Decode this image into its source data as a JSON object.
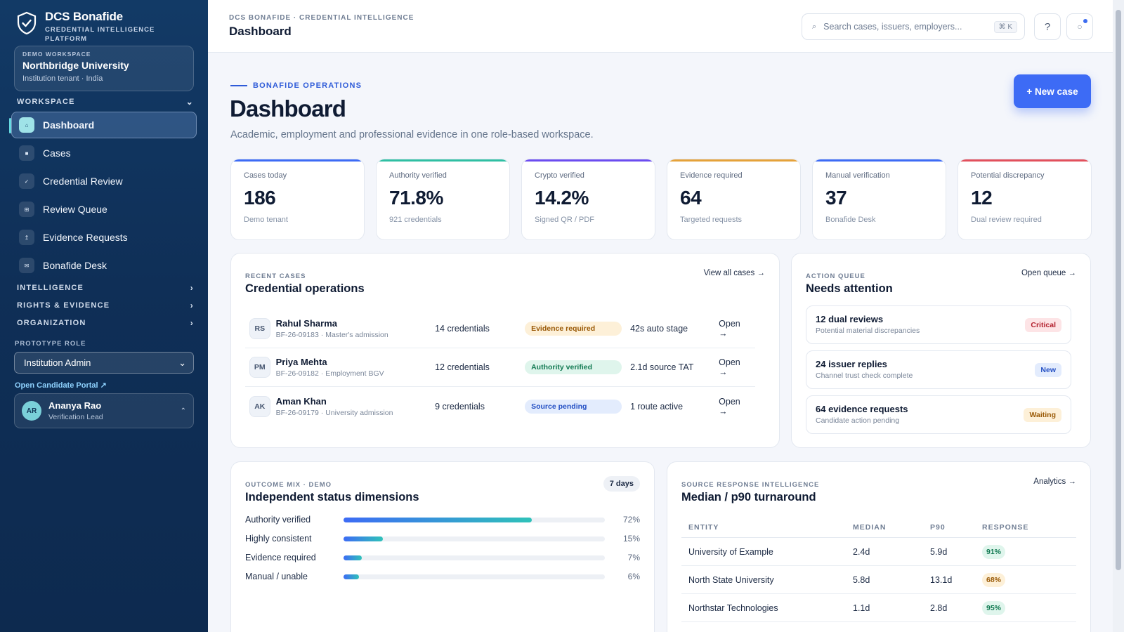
{
  "brand": {
    "name": "DCS Bonafide",
    "subtitle_line1": "CREDENTIAL INTELLIGENCE",
    "subtitle_line2": "PLATFORM"
  },
  "workspace_card": {
    "tag": "DEMO WORKSPACE",
    "name": "Northbridge University",
    "meta": "Institution tenant · India"
  },
  "sidebar": {
    "workspace_heading": "WORKSPACE",
    "items": [
      {
        "label": "Dashboard",
        "icon": "home-icon",
        "glyph": "⌂",
        "active": true
      },
      {
        "label": "Cases",
        "icon": "cases-icon",
        "glyph": "■"
      },
      {
        "label": "Credential Review",
        "icon": "check-icon",
        "glyph": "✓"
      },
      {
        "label": "Review Queue",
        "icon": "queue-icon",
        "glyph": "⊞"
      },
      {
        "label": "Evidence Requests",
        "icon": "upload-icon",
        "glyph": "↥"
      },
      {
        "label": "Bonafide Desk",
        "icon": "mail-icon",
        "glyph": "✉"
      }
    ],
    "sections": [
      "INTELLIGENCE",
      "RIGHTS & EVIDENCE",
      "ORGANIZATION"
    ],
    "role_label": "PROTOTYPE ROLE",
    "role_value": "Institution Admin",
    "portal_link": "Open Candidate Portal ↗",
    "user": {
      "initials": "AR",
      "name": "Ananya Rao",
      "role": "Verification Lead"
    }
  },
  "topbar": {
    "breadcrumb": "DCS BONAFIDE · CREDENTIAL INTELLIGENCE",
    "title": "Dashboard",
    "search_placeholder": "Search cases, issuers, employers...",
    "search_shortcut": "⌘ K",
    "help_label": "?"
  },
  "hero": {
    "eyebrow": "BONAFIDE OPERATIONS",
    "title": "Dashboard",
    "lead": "Academic, employment and professional evidence in one role-based workspace.",
    "new_case_label": "+ New case"
  },
  "kpis": [
    {
      "label": "Cases today",
      "value": "186",
      "sub": "Demo tenant",
      "color": "#3d6bf5"
    },
    {
      "label": "Authority verified",
      "value": "71.8%",
      "sub": "921 credentials",
      "color": "#2fbfa3"
    },
    {
      "label": "Crypto verified",
      "value": "14.2%",
      "sub": "Signed QR / PDF",
      "color": "#6b4cf0"
    },
    {
      "label": "Evidence required",
      "value": "64",
      "sub": "Targeted requests",
      "color": "#e5a23a"
    },
    {
      "label": "Manual verification",
      "value": "37",
      "sub": "Bonafide Desk",
      "color": "#3d6bf5"
    },
    {
      "label": "Potential discrepancy",
      "value": "12",
      "sub": "Dual review required",
      "color": "#e2505c"
    }
  ],
  "recent_cases": {
    "eyebrow": "RECENT CASES",
    "title": "Credential operations",
    "link": "View all cases →",
    "rows": [
      {
        "initials": "RS",
        "name": "Rahul Sharma",
        "meta": "BF-26-09183 · Master's admission",
        "credentials": "14 credentials",
        "status": "Evidence required",
        "tone": "warn",
        "time": "42s auto stage",
        "action": "Open →"
      },
      {
        "initials": "PM",
        "name": "Priya Mehta",
        "meta": "BF-26-09182 · Employment BGV",
        "credentials": "12 credentials",
        "status": "Authority verified",
        "tone": "ok",
        "time": "2.1d source TAT",
        "action": "Open →"
      },
      {
        "initials": "AK",
        "name": "Aman Khan",
        "meta": "BF-26-09179 · University admission",
        "credentials": "9 credentials",
        "status": "Source pending",
        "tone": "info",
        "time": "1 route active",
        "action": "Open →"
      }
    ]
  },
  "action_queue": {
    "eyebrow": "ACTION QUEUE",
    "title": "Needs attention",
    "link": "Open queue →",
    "items": [
      {
        "title": "12 dual reviews",
        "sub": "Potential material discrepancies",
        "badge": "Critical",
        "tone": "crit"
      },
      {
        "title": "24 issuer replies",
        "sub": "Channel trust check complete",
        "badge": "New",
        "tone": "new"
      },
      {
        "title": "64 evidence requests",
        "sub": "Candidate action pending",
        "badge": "Waiting",
        "tone": "wait"
      }
    ]
  },
  "outcome_mix": {
    "eyebrow": "OUTCOME MIX · DEMO",
    "title": "Independent status dimensions",
    "range": "7 days",
    "rows": [
      {
        "label": "Authority verified",
        "pct": 72,
        "pct_label": "72%"
      },
      {
        "label": "Highly consistent",
        "pct": 15,
        "pct_label": "15%"
      },
      {
        "label": "Evidence required",
        "pct": 7,
        "pct_label": "7%"
      },
      {
        "label": "Manual / unable",
        "pct": 6,
        "pct_label": "6%"
      }
    ]
  },
  "turnaround": {
    "eyebrow": "SOURCE RESPONSE INTELLIGENCE",
    "title": "Median / p90 turnaround",
    "link": "Analytics →",
    "columns": [
      "ENTITY",
      "MEDIAN",
      "P90",
      "RESPONSE"
    ],
    "rows": [
      {
        "entity": "University of Example",
        "median": "2.4d",
        "p90": "5.9d",
        "response": "91%",
        "tone": "good"
      },
      {
        "entity": "North State University",
        "median": "5.8d",
        "p90": "13.1d",
        "response": "68%",
        "tone": "mid"
      },
      {
        "entity": "Northstar Technologies",
        "median": "1.1d",
        "p90": "2.8d",
        "response": "95%",
        "tone": "good"
      }
    ]
  }
}
